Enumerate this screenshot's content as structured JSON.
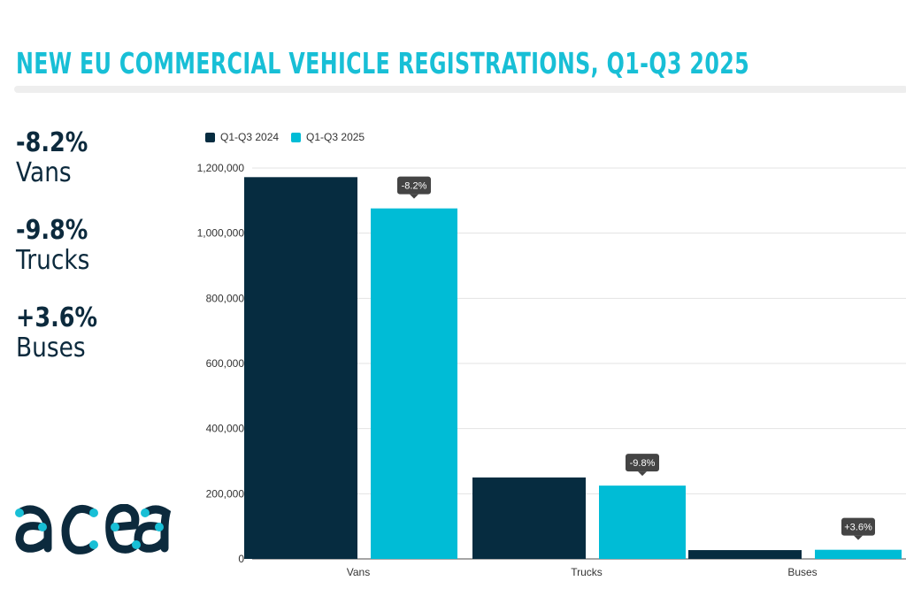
{
  "title": "NEW EU COMMERCIAL VEHICLE REGISTRATIONS, Q1-Q3 2025",
  "stats": [
    {
      "pct": "-8.2%",
      "label": "Vans"
    },
    {
      "pct": "-9.8%",
      "label": "Trucks"
    },
    {
      "pct": "+3.6%",
      "label": "Buses"
    }
  ],
  "logo_text": "acea",
  "colors": {
    "dark": "#062c40",
    "cyan": "#00bcd6",
    "title": "#18bfd6",
    "tooltip": "#444444"
  },
  "chart_data": {
    "type": "bar",
    "categories": [
      "Vans",
      "Trucks",
      "Buses"
    ],
    "series": [
      {
        "name": "Q1-Q3 2024",
        "values": [
          1172000,
          250000,
          27000
        ]
      },
      {
        "name": "Q1-Q3 2025",
        "values": [
          1076000,
          225000,
          28000
        ]
      }
    ],
    "annotations": [
      "-8.2%",
      "-9.8%",
      "+3.6%"
    ],
    "ylim": [
      0,
      1200000
    ],
    "yticks": [
      "0",
      "200,000",
      "400,000",
      "600,000",
      "800,000",
      "1,000,000",
      "1,200,000"
    ],
    "grid": true,
    "legend": "top-left"
  }
}
